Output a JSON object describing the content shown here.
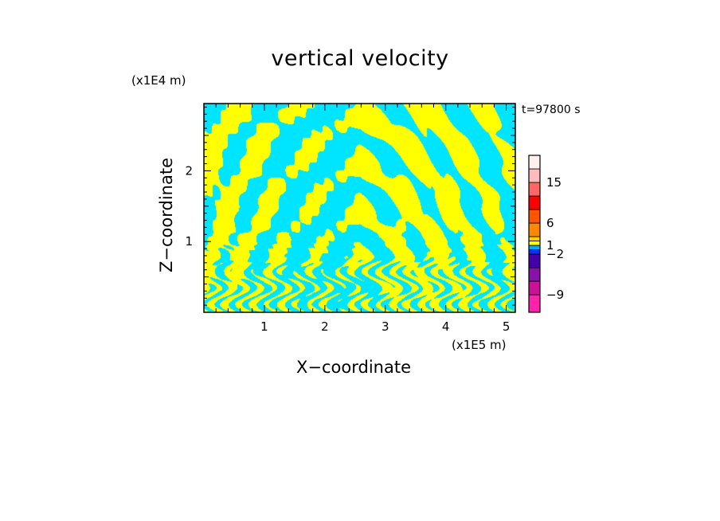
{
  "chart_data": {
    "type": "heatmap",
    "title": "vertical velocity",
    "xlabel": "X−coordinate",
    "ylabel": "Z−coordinate",
    "x_multiplier": "(x1E5 m)",
    "y_multiplier": "(x1E4 m)",
    "time_label": "t=97800 s",
    "xlim": [
      0,
      5.15
    ],
    "ylim": [
      0,
      2.95
    ],
    "x_ticks": [
      1,
      2,
      3,
      4,
      5
    ],
    "y_ticks": [
      1,
      2
    ],
    "x_tick_labels": [
      "1",
      "2",
      "3",
      "4",
      "5"
    ],
    "y_tick_labels": [
      "1",
      "2"
    ],
    "field_colors": {
      "positive": "#ffff00",
      "negative": "#00e5ff"
    },
    "colorbar": {
      "levels": [
        -12,
        -9,
        -6,
        -4,
        -2,
        -1,
        1,
        2,
        4,
        6,
        9,
        12,
        15,
        20
      ],
      "colors": [
        "#ff22aa",
        "#cc1199",
        "#8811aa",
        "#4400aa",
        "#0033ff",
        "#00aaff",
        "#ffff00",
        "#ffcc00",
        "#ff8800",
        "#ff5500",
        "#ff0000",
        "#ff6666",
        "#ffbbbb",
        "#fff0f0"
      ],
      "labeled_values": [
        15,
        6,
        1,
        -2,
        -9
      ],
      "labels": [
        "15",
        "6",
        "1",
        "−2",
        "−9"
      ]
    }
  }
}
